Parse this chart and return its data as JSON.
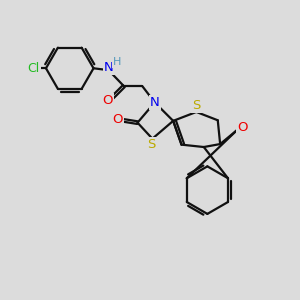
{
  "bg": "#dcdcdc",
  "bond_color": "#111111",
  "bond_lw": 1.6,
  "atom_colors": {
    "N": "#0000ee",
    "O": "#ee0000",
    "S": "#bbaa00",
    "Cl": "#22bb22",
    "H": "#5599bb"
  },
  "fs": 8.5
}
